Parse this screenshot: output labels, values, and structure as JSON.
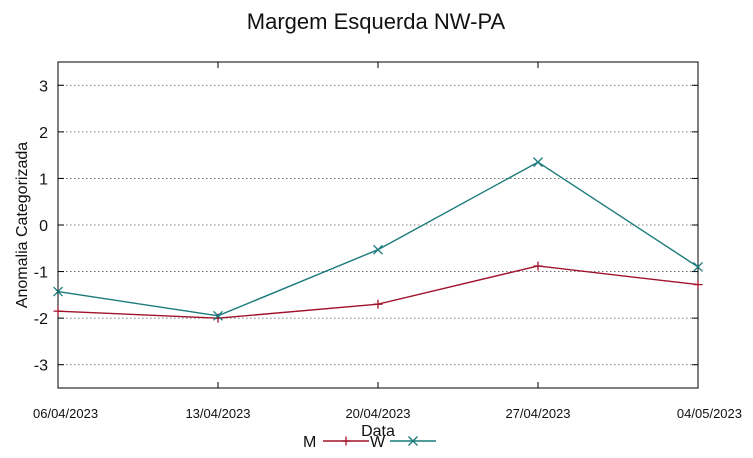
{
  "chart_data": {
    "type": "line",
    "title": "Margem Esquerda NW-PA",
    "xlabel": "Data",
    "ylabel": "Anomalia Categorizada",
    "categories": [
      "06/04/2023",
      "13/04/2023",
      "20/04/2023",
      "27/04/2023",
      "04/05/2023"
    ],
    "ylim": [
      -3.5,
      3.5
    ],
    "yticks": [
      -3,
      -2,
      -1,
      0,
      1,
      2,
      3
    ],
    "grid": true,
    "legend_position": "bottom-center",
    "series": [
      {
        "name": "M",
        "color": "#a0122a",
        "marker": "plus",
        "values": [
          -1.85,
          -2.0,
          -1.7,
          -0.88,
          -1.28
        ]
      },
      {
        "name": "W",
        "color": "#1a7a7a",
        "marker": "cross",
        "values": [
          -1.43,
          -1.95,
          -0.53,
          1.35,
          -0.9
        ]
      }
    ]
  }
}
